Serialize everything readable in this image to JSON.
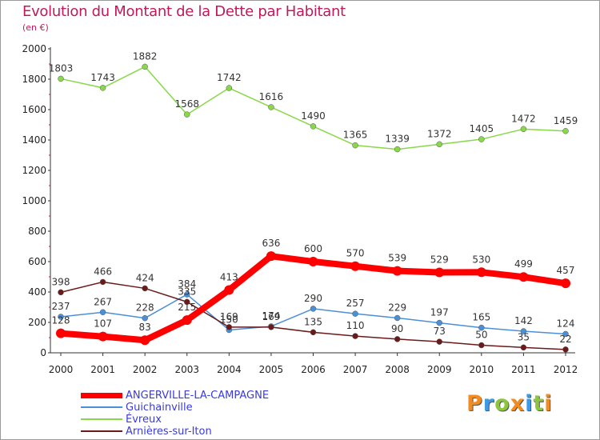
{
  "title": "Evolution du Montant de la Dette par Habitant",
  "subtitle": "(en €)",
  "brand": "Proxiti",
  "chart_data": {
    "type": "line",
    "x": [
      "2000",
      "2001",
      "2002",
      "2003",
      "2004",
      "2005",
      "2006",
      "2007",
      "2008",
      "2009",
      "2010",
      "2011",
      "2012"
    ],
    "ylim": [
      0,
      2000
    ],
    "yticks": [
      0,
      200,
      400,
      600,
      800,
      1000,
      1200,
      1400,
      1600,
      1800,
      2000
    ],
    "grid": false,
    "legend_position": "bottom-left",
    "series": [
      {
        "name": "ANGERVILLE-LA-CAMPAGNE",
        "color": "#ff0000",
        "values": [
          128,
          107,
          83,
          215,
          413,
          636,
          600,
          570,
          539,
          529,
          530,
          499,
          457
        ]
      },
      {
        "name": "Guichainville",
        "color": "#4a90d9",
        "values": [
          237,
          267,
          228,
          384,
          150,
          174,
          290,
          257,
          229,
          197,
          165,
          142,
          124
        ]
      },
      {
        "name": "Évreux",
        "color": "#88d84a",
        "values": [
          1803,
          1743,
          1882,
          1568,
          1742,
          1616,
          1490,
          1365,
          1339,
          1372,
          1405,
          1472,
          1459
        ]
      },
      {
        "name": "Arnières-sur-Iton",
        "color": "#6b1a1a",
        "values": [
          398,
          466,
          424,
          335,
          169,
          169,
          135,
          110,
          90,
          73,
          50,
          35,
          22
        ]
      }
    ]
  }
}
